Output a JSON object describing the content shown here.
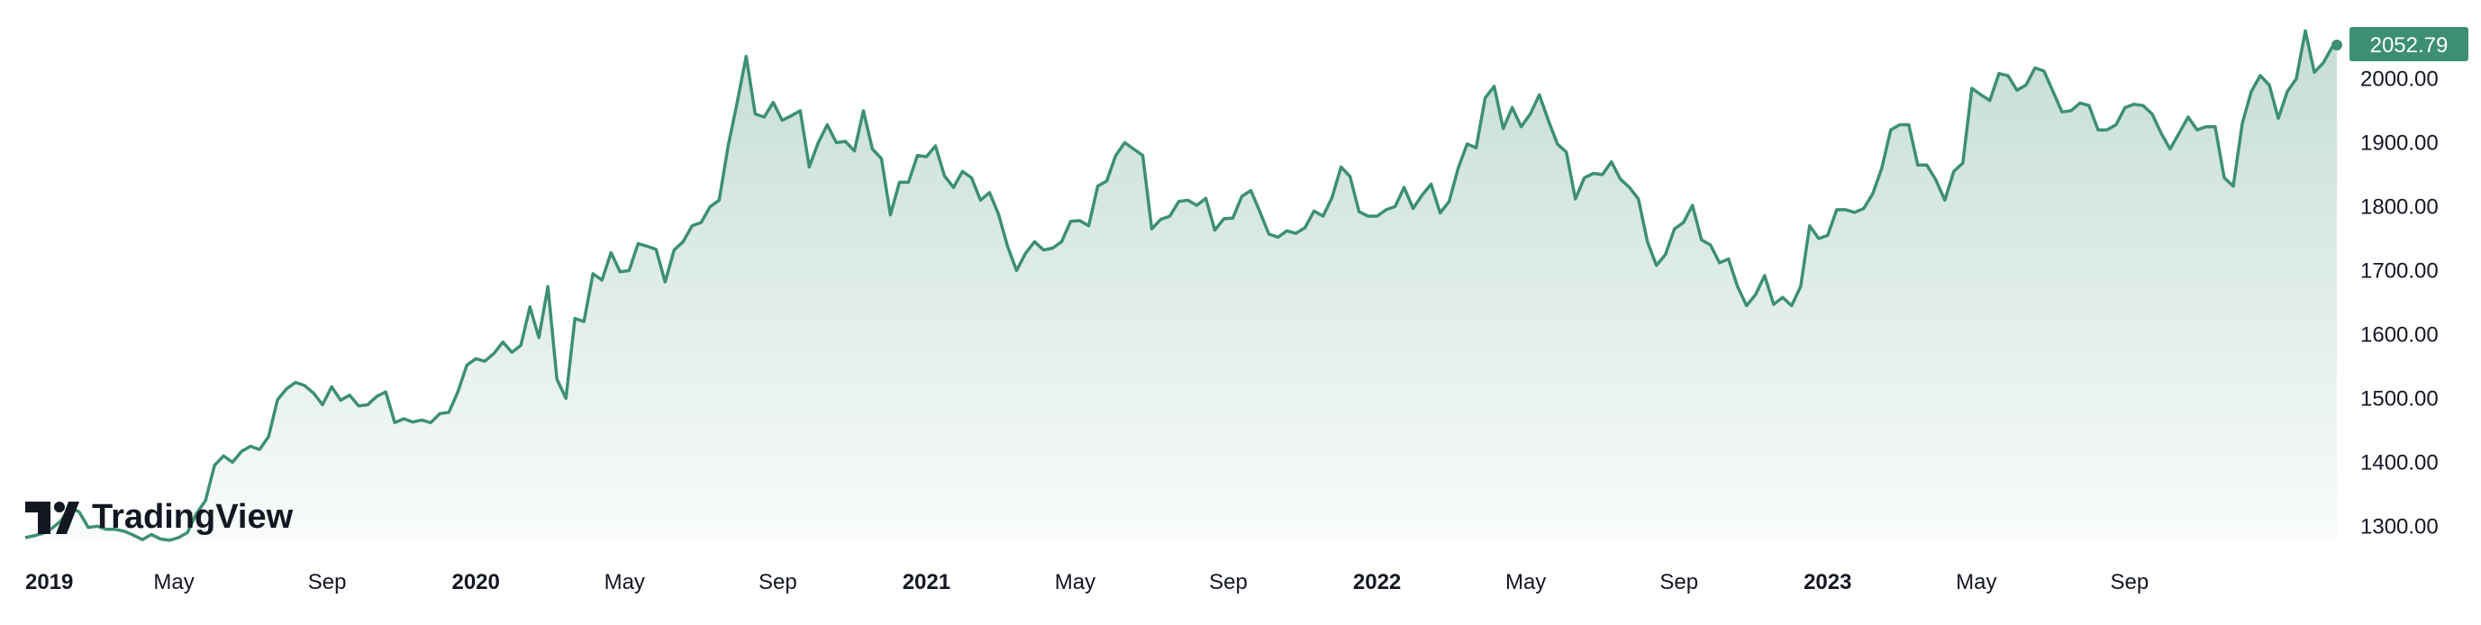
{
  "chart_data": {
    "type": "area",
    "series": [
      {
        "values": [
          [
            2019.0,
            1282
          ],
          [
            2019.02,
            1285
          ],
          [
            2019.04,
            1289
          ],
          [
            2019.06,
            1297
          ],
          [
            2019.08,
            1309
          ],
          [
            2019.1,
            1330
          ],
          [
            2019.12,
            1322
          ],
          [
            2019.14,
            1298
          ],
          [
            2019.16,
            1300
          ],
          [
            2019.18,
            1295
          ],
          [
            2019.2,
            1295
          ],
          [
            2019.22,
            1292
          ],
          [
            2019.24,
            1286
          ],
          [
            2019.26,
            1279
          ],
          [
            2019.28,
            1287
          ],
          [
            2019.3,
            1280
          ],
          [
            2019.32,
            1278
          ],
          [
            2019.34,
            1282
          ],
          [
            2019.36,
            1290
          ],
          [
            2019.38,
            1320
          ],
          [
            2019.4,
            1340
          ],
          [
            2019.42,
            1395
          ],
          [
            2019.44,
            1410
          ],
          [
            2019.46,
            1400
          ],
          [
            2019.48,
            1417
          ],
          [
            2019.5,
            1425
          ],
          [
            2019.52,
            1420
          ],
          [
            2019.54,
            1440
          ],
          [
            2019.56,
            1498
          ],
          [
            2019.58,
            1515
          ],
          [
            2019.6,
            1525
          ],
          [
            2019.62,
            1520
          ],
          [
            2019.64,
            1508
          ],
          [
            2019.66,
            1490
          ],
          [
            2019.68,
            1518
          ],
          [
            2019.7,
            1497
          ],
          [
            2019.72,
            1505
          ],
          [
            2019.74,
            1488
          ],
          [
            2019.76,
            1490
          ],
          [
            2019.78,
            1503
          ],
          [
            2019.8,
            1510
          ],
          [
            2019.82,
            1462
          ],
          [
            2019.84,
            1468
          ],
          [
            2019.86,
            1463
          ],
          [
            2019.88,
            1466
          ],
          [
            2019.9,
            1462
          ],
          [
            2019.92,
            1476
          ],
          [
            2019.94,
            1478
          ],
          [
            2019.96,
            1510
          ],
          [
            2019.98,
            1552
          ],
          [
            2020.0,
            1562
          ],
          [
            2020.02,
            1558
          ],
          [
            2020.04,
            1570
          ],
          [
            2020.06,
            1588
          ],
          [
            2020.08,
            1572
          ],
          [
            2020.1,
            1583
          ],
          [
            2020.12,
            1643
          ],
          [
            2020.14,
            1595
          ],
          [
            2020.16,
            1675
          ],
          [
            2020.18,
            1530
          ],
          [
            2020.2,
            1500
          ],
          [
            2020.22,
            1625
          ],
          [
            2020.24,
            1620
          ],
          [
            2020.26,
            1695
          ],
          [
            2020.28,
            1685
          ],
          [
            2020.3,
            1728
          ],
          [
            2020.32,
            1698
          ],
          [
            2020.34,
            1700
          ],
          [
            2020.36,
            1742
          ],
          [
            2020.38,
            1738
          ],
          [
            2020.4,
            1733
          ],
          [
            2020.42,
            1682
          ],
          [
            2020.44,
            1732
          ],
          [
            2020.46,
            1745
          ],
          [
            2020.48,
            1770
          ],
          [
            2020.5,
            1775
          ],
          [
            2020.52,
            1800
          ],
          [
            2020.54,
            1810
          ],
          [
            2020.56,
            1895
          ],
          [
            2020.58,
            1963
          ],
          [
            2020.6,
            2035
          ],
          [
            2020.62,
            1945
          ],
          [
            2020.64,
            1940
          ],
          [
            2020.66,
            1963
          ],
          [
            2020.68,
            1935
          ],
          [
            2020.7,
            1942
          ],
          [
            2020.72,
            1950
          ],
          [
            2020.74,
            1862
          ],
          [
            2020.76,
            1900
          ],
          [
            2020.78,
            1928
          ],
          [
            2020.8,
            1900
          ],
          [
            2020.82,
            1902
          ],
          [
            2020.84,
            1887
          ],
          [
            2020.86,
            1950
          ],
          [
            2020.88,
            1890
          ],
          [
            2020.9,
            1875
          ],
          [
            2020.92,
            1787
          ],
          [
            2020.94,
            1838
          ],
          [
            2020.96,
            1838
          ],
          [
            2020.98,
            1880
          ],
          [
            2021.0,
            1878
          ],
          [
            2021.02,
            1895
          ],
          [
            2021.04,
            1848
          ],
          [
            2021.06,
            1830
          ],
          [
            2021.08,
            1855
          ],
          [
            2021.1,
            1845
          ],
          [
            2021.12,
            1810
          ],
          [
            2021.14,
            1822
          ],
          [
            2021.16,
            1788
          ],
          [
            2021.18,
            1738
          ],
          [
            2021.2,
            1700
          ],
          [
            2021.22,
            1727
          ],
          [
            2021.24,
            1745
          ],
          [
            2021.26,
            1732
          ],
          [
            2021.28,
            1735
          ],
          [
            2021.3,
            1745
          ],
          [
            2021.32,
            1777
          ],
          [
            2021.34,
            1778
          ],
          [
            2021.36,
            1770
          ],
          [
            2021.38,
            1832
          ],
          [
            2021.4,
            1840
          ],
          [
            2021.42,
            1880
          ],
          [
            2021.44,
            1900
          ],
          [
            2021.46,
            1890
          ],
          [
            2021.48,
            1880
          ],
          [
            2021.5,
            1765
          ],
          [
            2021.52,
            1780
          ],
          [
            2021.54,
            1785
          ],
          [
            2021.56,
            1808
          ],
          [
            2021.58,
            1810
          ],
          [
            2021.6,
            1802
          ],
          [
            2021.62,
            1813
          ],
          [
            2021.64,
            1763
          ],
          [
            2021.66,
            1781
          ],
          [
            2021.68,
            1782
          ],
          [
            2021.7,
            1816
          ],
          [
            2021.72,
            1825
          ],
          [
            2021.74,
            1792
          ],
          [
            2021.76,
            1757
          ],
          [
            2021.78,
            1752
          ],
          [
            2021.8,
            1762
          ],
          [
            2021.82,
            1758
          ],
          [
            2021.84,
            1767
          ],
          [
            2021.86,
            1793
          ],
          [
            2021.88,
            1785
          ],
          [
            2021.9,
            1814
          ],
          [
            2021.92,
            1862
          ],
          [
            2021.94,
            1847
          ],
          [
            2021.96,
            1792
          ],
          [
            2021.98,
            1785
          ],
          [
            2022.0,
            1785
          ],
          [
            2022.02,
            1795
          ],
          [
            2022.04,
            1800
          ],
          [
            2022.06,
            1830
          ],
          [
            2022.08,
            1797
          ],
          [
            2022.1,
            1818
          ],
          [
            2022.12,
            1835
          ],
          [
            2022.14,
            1790
          ],
          [
            2022.16,
            1808
          ],
          [
            2022.18,
            1860
          ],
          [
            2022.2,
            1898
          ],
          [
            2022.22,
            1892
          ],
          [
            2022.24,
            1970
          ],
          [
            2022.26,
            1988
          ],
          [
            2022.28,
            1922
          ],
          [
            2022.3,
            1955
          ],
          [
            2022.32,
            1925
          ],
          [
            2022.34,
            1945
          ],
          [
            2022.36,
            1975
          ],
          [
            2022.38,
            1935
          ],
          [
            2022.4,
            1898
          ],
          [
            2022.42,
            1885
          ],
          [
            2022.44,
            1812
          ],
          [
            2022.46,
            1845
          ],
          [
            2022.48,
            1852
          ],
          [
            2022.5,
            1850
          ],
          [
            2022.52,
            1870
          ],
          [
            2022.54,
            1843
          ],
          [
            2022.56,
            1830
          ],
          [
            2022.58,
            1812
          ],
          [
            2022.6,
            1745
          ],
          [
            2022.62,
            1708
          ],
          [
            2022.64,
            1725
          ],
          [
            2022.66,
            1765
          ],
          [
            2022.68,
            1775
          ],
          [
            2022.7,
            1802
          ],
          [
            2022.72,
            1748
          ],
          [
            2022.74,
            1740
          ],
          [
            2022.76,
            1712
          ],
          [
            2022.78,
            1718
          ],
          [
            2022.8,
            1675
          ],
          [
            2022.82,
            1645
          ],
          [
            2022.84,
            1662
          ],
          [
            2022.86,
            1692
          ],
          [
            2022.88,
            1647
          ],
          [
            2022.9,
            1658
          ],
          [
            2022.92,
            1645
          ],
          [
            2022.94,
            1675
          ],
          [
            2022.96,
            1770
          ],
          [
            2022.98,
            1750
          ],
          [
            2023.0,
            1755
          ],
          [
            2023.02,
            1795
          ],
          [
            2023.04,
            1795
          ],
          [
            2023.06,
            1791
          ],
          [
            2023.08,
            1797
          ],
          [
            2023.1,
            1820
          ],
          [
            2023.12,
            1860
          ],
          [
            2023.14,
            1920
          ],
          [
            2023.16,
            1928
          ],
          [
            2023.18,
            1928
          ],
          [
            2023.2,
            1865
          ],
          [
            2023.22,
            1865
          ],
          [
            2023.24,
            1842
          ],
          [
            2023.26,
            1810
          ],
          [
            2023.28,
            1855
          ],
          [
            2023.3,
            1868
          ],
          [
            2023.32,
            1985
          ],
          [
            2023.34,
            1975
          ],
          [
            2023.36,
            1966
          ],
          [
            2023.38,
            2008
          ],
          [
            2023.4,
            2005
          ],
          [
            2023.42,
            1982
          ],
          [
            2023.44,
            1990
          ],
          [
            2023.46,
            2017
          ],
          [
            2023.48,
            2012
          ],
          [
            2023.5,
            1980
          ],
          [
            2023.52,
            1948
          ],
          [
            2023.54,
            1950
          ],
          [
            2023.56,
            1962
          ],
          [
            2023.58,
            1958
          ],
          [
            2023.6,
            1920
          ],
          [
            2023.62,
            1920
          ],
          [
            2023.64,
            1928
          ],
          [
            2023.66,
            1955
          ],
          [
            2023.68,
            1960
          ],
          [
            2023.7,
            1958
          ],
          [
            2023.72,
            1945
          ],
          [
            2023.74,
            1915
          ],
          [
            2023.76,
            1890
          ],
          [
            2023.78,
            1915
          ],
          [
            2023.8,
            1940
          ],
          [
            2023.82,
            1920
          ],
          [
            2023.84,
            1925
          ],
          [
            2023.86,
            1925
          ],
          [
            2023.88,
            1845
          ],
          [
            2023.9,
            1832
          ],
          [
            2023.92,
            1930
          ],
          [
            2023.94,
            1980
          ],
          [
            2023.96,
            2005
          ],
          [
            2023.98,
            1990
          ],
          [
            2024.0,
            1938
          ],
          [
            2024.02,
            1980
          ],
          [
            2024.04,
            2000
          ],
          [
            2024.06,
            2075
          ],
          [
            2024.08,
            2010
          ],
          [
            2024.1,
            2025
          ],
          [
            2024.12,
            2050
          ],
          [
            2024.13,
            2052.79
          ]
        ]
      }
    ],
    "y_ticks": [
      "2000.00",
      "1900.00",
      "1800.00",
      "1700.00",
      "1600.00",
      "1500.00",
      "1400.00",
      "1300.00"
    ],
    "y_tick_values": [
      2000,
      1900,
      1800,
      1700,
      1600,
      1500,
      1400,
      1300
    ],
    "x_ticks": [
      {
        "label": "2019",
        "value": 2019.0,
        "bold": true
      },
      {
        "label": "May",
        "value": 2019.33,
        "bold": false
      },
      {
        "label": "Sep",
        "value": 2019.67,
        "bold": false
      },
      {
        "label": "2020",
        "value": 2020.0,
        "bold": true
      },
      {
        "label": "May",
        "value": 2020.33,
        "bold": false
      },
      {
        "label": "Sep",
        "value": 2020.67,
        "bold": false
      },
      {
        "label": "2021",
        "value": 2021.0,
        "bold": true
      },
      {
        "label": "May",
        "value": 2021.33,
        "bold": false
      },
      {
        "label": "Sep",
        "value": 2021.67,
        "bold": false
      },
      {
        "label": "2022",
        "value": 2022.0,
        "bold": true
      },
      {
        "label": "May",
        "value": 2022.33,
        "bold": false
      },
      {
        "label": "Sep",
        "value": 2022.67,
        "bold": false
      },
      {
        "label": "2023",
        "value": 2023.0,
        "bold": true
      },
      {
        "label": "May",
        "value": 2023.33,
        "bold": false
      },
      {
        "label": "Sep",
        "value": 2023.67,
        "bold": false
      }
    ],
    "xlim": [
      2019.0,
      2024.13
    ],
    "ylim": [
      1275,
      2095
    ],
    "last_price_label": "2052.79",
    "grid": false,
    "colors": {
      "line": "#3d8f74",
      "fill_top": "#3d8f74",
      "badge": "#3d8f74"
    }
  },
  "branding": {
    "logo_text": "TradingView",
    "logo_icon": "tradingview-logo-icon"
  }
}
